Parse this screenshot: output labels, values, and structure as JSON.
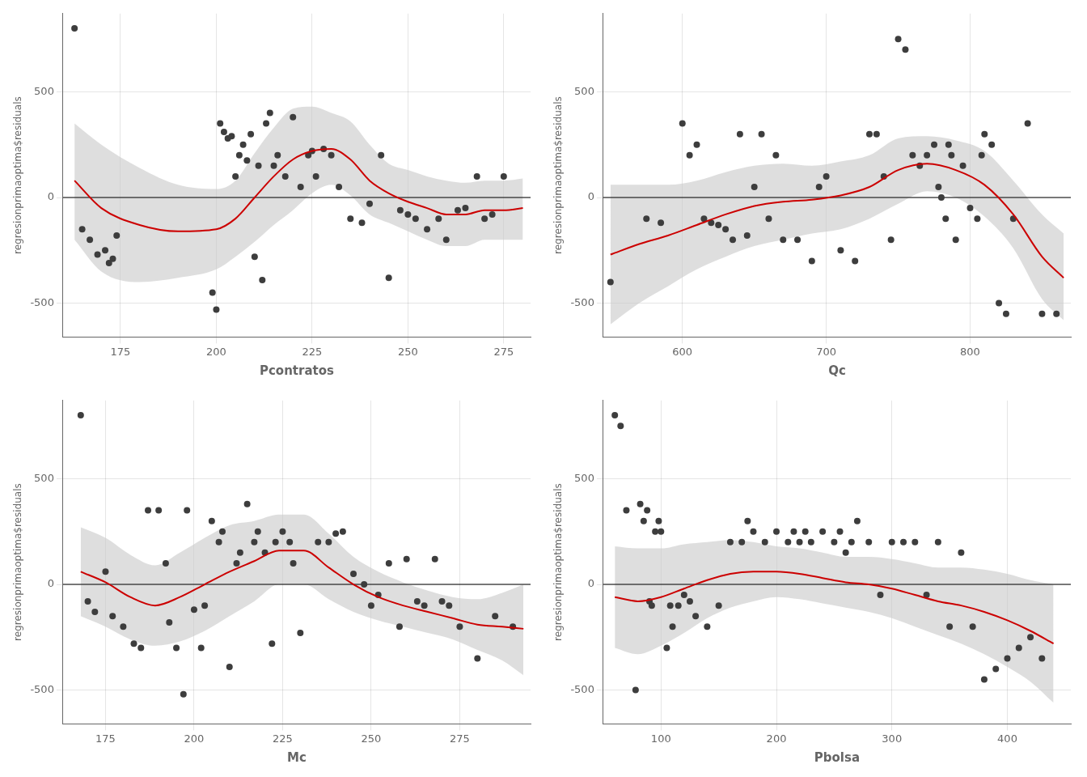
{
  "chart_data": [
    {
      "type": "scatter",
      "x_label": "Pcontratos",
      "y_label": "regresionprimaoptima$residuals",
      "xlim": [
        160,
        282
      ],
      "ylim": [
        -660,
        870
      ],
      "xticks": [
        175,
        200,
        225,
        250,
        275
      ],
      "yticks": [
        -500,
        0,
        500
      ],
      "grid": true,
      "series": [
        {
          "type": "band",
          "color": "#c8c8c8",
          "x": [
            163,
            170,
            180,
            190,
            200,
            205,
            210,
            215,
            220,
            225,
            230,
            235,
            240,
            245,
            250,
            255,
            260,
            265,
            270,
            275,
            280
          ],
          "lower": [
            -200,
            -350,
            -400,
            -380,
            -340,
            -280,
            -210,
            -130,
            -60,
            20,
            60,
            10,
            -80,
            -120,
            -160,
            -200,
            -230,
            -230,
            -200,
            -200,
            -200
          ],
          "upper": [
            350,
            250,
            140,
            60,
            40,
            80,
            210,
            330,
            420,
            430,
            400,
            360,
            250,
            160,
            130,
            100,
            80,
            70,
            80,
            80,
            90
          ]
        },
        {
          "type": "hline",
          "color": "#000000",
          "value": 0
        },
        {
          "type": "scatter",
          "color": "#3d3d3d",
          "x": [
            163,
            165,
            167,
            169,
            171,
            172,
            173,
            174,
            199,
            200,
            201,
            202,
            203,
            204,
            205,
            206,
            207,
            208,
            209,
            210,
            211,
            212,
            213,
            214,
            215,
            216,
            218,
            220,
            222,
            224,
            225,
            226,
            228,
            230,
            232,
            235,
            238,
            240,
            243,
            245,
            248,
            250,
            252,
            255,
            258,
            260,
            263,
            265,
            268,
            270,
            272,
            275
          ],
          "values": [
            800,
            -150,
            -200,
            -270,
            -250,
            -310,
            -290,
            -180,
            -450,
            -530,
            350,
            310,
            280,
            290,
            100,
            200,
            250,
            175,
            300,
            -280,
            150,
            -390,
            350,
            400,
            150,
            200,
            100,
            380,
            50,
            200,
            220,
            100,
            230,
            200,
            50,
            -100,
            -120,
            -30,
            200,
            -380,
            -60,
            -80,
            -100,
            -150,
            -100,
            -200,
            -60,
            -50,
            100,
            -100,
            -80,
            100
          ]
        },
        {
          "type": "line",
          "color": "#cc0000",
          "x": [
            163,
            170,
            180,
            190,
            200,
            205,
            210,
            215,
            220,
            225,
            230,
            235,
            240,
            245,
            250,
            255,
            260,
            265,
            270,
            275,
            280
          ],
          "values": [
            80,
            -50,
            -130,
            -160,
            -150,
            -100,
            0,
            100,
            180,
            220,
            230,
            180,
            80,
            20,
            -20,
            -50,
            -80,
            -80,
            -60,
            -60,
            -50
          ]
        }
      ]
    },
    {
      "type": "scatter",
      "x_label": "Qc",
      "y_label": "regresionprimaoptima$residuals",
      "xlim": [
        545,
        870
      ],
      "ylim": [
        -660,
        870
      ],
      "xticks": [
        600,
        700,
        800
      ],
      "yticks": [
        -500,
        0,
        500
      ],
      "grid": true,
      "series": [
        {
          "type": "band",
          "color": "#c8c8c8",
          "x": [
            550,
            570,
            590,
            610,
            630,
            650,
            670,
            690,
            710,
            730,
            750,
            770,
            790,
            810,
            830,
            850,
            865
          ],
          "lower": [
            -600,
            -500,
            -420,
            -340,
            -280,
            -230,
            -200,
            -170,
            -150,
            -100,
            -30,
            30,
            0,
            -90,
            -240,
            -480,
            -580
          ],
          "upper": [
            60,
            60,
            60,
            80,
            120,
            150,
            160,
            150,
            170,
            200,
            280,
            290,
            270,
            220,
            80,
            -80,
            -170
          ]
        },
        {
          "type": "hline",
          "color": "#000000",
          "value": 0
        },
        {
          "type": "scatter",
          "color": "#3d3d3d",
          "x": [
            550,
            575,
            585,
            600,
            605,
            610,
            615,
            620,
            625,
            630,
            635,
            640,
            645,
            650,
            655,
            660,
            665,
            670,
            680,
            690,
            695,
            700,
            710,
            720,
            730,
            735,
            740,
            745,
            750,
            755,
            760,
            765,
            770,
            775,
            778,
            780,
            783,
            785,
            787,
            790,
            795,
            800,
            805,
            808,
            810,
            815,
            820,
            825,
            830,
            840,
            850,
            860
          ],
          "values": [
            -400,
            -100,
            -120,
            350,
            200,
            250,
            -100,
            -120,
            -130,
            -150,
            -200,
            300,
            -180,
            50,
            300,
            -100,
            200,
            -200,
            -200,
            -300,
            50,
            100,
            -250,
            -300,
            300,
            300,
            100,
            -200,
            750,
            700,
            200,
            150,
            200,
            250,
            50,
            0,
            -100,
            250,
            200,
            -200,
            150,
            -50,
            -100,
            200,
            300,
            250,
            -500,
            -550,
            -100,
            350,
            -550,
            -550
          ]
        },
        {
          "type": "line",
          "color": "#cc0000",
          "x": [
            550,
            570,
            590,
            610,
            630,
            650,
            670,
            690,
            710,
            730,
            750,
            770,
            790,
            810,
            830,
            850,
            865
          ],
          "values": [
            -270,
            -220,
            -180,
            -130,
            -80,
            -40,
            -20,
            -10,
            10,
            50,
            130,
            160,
            130,
            60,
            -80,
            -280,
            -380
          ]
        }
      ]
    },
    {
      "type": "scatter",
      "x_label": "Mc",
      "y_label": "regresionprimaoptima$residuals",
      "xlim": [
        163,
        295
      ],
      "ylim": [
        -660,
        870
      ],
      "xticks": [
        175,
        200,
        225,
        250,
        275
      ],
      "yticks": [
        -500,
        0,
        500
      ],
      "grid": true,
      "series": [
        {
          "type": "band",
          "color": "#c8c8c8",
          "x": [
            168,
            175,
            182,
            189,
            196,
            203,
            210,
            217,
            224,
            231,
            238,
            245,
            252,
            259,
            266,
            273,
            280,
            287,
            293
          ],
          "lower": [
            -150,
            -200,
            -260,
            -290,
            -270,
            -220,
            -150,
            -80,
            0,
            0,
            -70,
            -130,
            -170,
            -200,
            -230,
            -260,
            -310,
            -360,
            -430
          ],
          "upper": [
            270,
            220,
            140,
            90,
            150,
            220,
            280,
            300,
            330,
            330,
            240,
            130,
            60,
            10,
            -30,
            -60,
            -70,
            -40,
            0
          ]
        },
        {
          "type": "hline",
          "color": "#000000",
          "value": 0
        },
        {
          "type": "scatter",
          "color": "#3d3d3d",
          "x": [
            168,
            170,
            172,
            175,
            177,
            180,
            183,
            185,
            187,
            190,
            192,
            193,
            195,
            197,
            198,
            200,
            202,
            203,
            205,
            207,
            208,
            210,
            212,
            213,
            215,
            217,
            218,
            220,
            222,
            223,
            225,
            227,
            228,
            230,
            235,
            238,
            240,
            242,
            245,
            248,
            250,
            252,
            255,
            258,
            260,
            263,
            265,
            268,
            270,
            272,
            275,
            280,
            285,
            290
          ],
          "values": [
            800,
            -80,
            -130,
            60,
            -150,
            -200,
            -280,
            -300,
            350,
            350,
            100,
            -180,
            -300,
            -520,
            350,
            -120,
            -300,
            -100,
            300,
            200,
            250,
            -390,
            100,
            150,
            380,
            200,
            250,
            150,
            -280,
            200,
            250,
            200,
            100,
            -230,
            200,
            200,
            240,
            250,
            50,
            0,
            -100,
            -50,
            100,
            -200,
            120,
            -80,
            -100,
            120,
            -80,
            -100,
            -200,
            -350,
            -150,
            -200
          ]
        },
        {
          "type": "line",
          "color": "#cc0000",
          "x": [
            168,
            175,
            182,
            189,
            196,
            203,
            210,
            217,
            224,
            231,
            238,
            245,
            252,
            259,
            266,
            273,
            280,
            287,
            293
          ],
          "values": [
            60,
            10,
            -60,
            -100,
            -60,
            0,
            60,
            110,
            160,
            160,
            80,
            0,
            -60,
            -100,
            -130,
            -160,
            -190,
            -200,
            -210
          ]
        }
      ]
    },
    {
      "type": "scatter",
      "x_label": "Pbolsa",
      "y_label": "regresionprimaoptima$residuals",
      "xlim": [
        50,
        455
      ],
      "ylim": [
        -660,
        870
      ],
      "xticks": [
        100,
        200,
        300,
        400
      ],
      "yticks": [
        -500,
        0,
        500
      ],
      "grid": true,
      "series": [
        {
          "type": "band",
          "color": "#c8c8c8",
          "x": [
            60,
            80,
            100,
            120,
            140,
            160,
            180,
            200,
            220,
            240,
            260,
            280,
            300,
            320,
            340,
            360,
            380,
            400,
            420,
            440
          ],
          "lower": [
            -300,
            -330,
            -290,
            -230,
            -160,
            -110,
            -80,
            -60,
            -70,
            -90,
            -110,
            -130,
            -160,
            -200,
            -240,
            -280,
            -330,
            -390,
            -460,
            -560
          ],
          "upper": [
            180,
            170,
            170,
            190,
            200,
            210,
            200,
            180,
            170,
            150,
            130,
            130,
            120,
            100,
            80,
            80,
            70,
            50,
            20,
            0
          ]
        },
        {
          "type": "hline",
          "color": "#000000",
          "value": 0
        },
        {
          "type": "scatter",
          "color": "#3d3d3d",
          "x": [
            60,
            65,
            70,
            78,
            82,
            85,
            88,
            90,
            92,
            95,
            98,
            100,
            105,
            108,
            110,
            115,
            120,
            125,
            130,
            140,
            150,
            160,
            170,
            175,
            180,
            190,
            200,
            210,
            215,
            220,
            225,
            230,
            240,
            250,
            255,
            260,
            265,
            270,
            280,
            290,
            300,
            310,
            320,
            330,
            340,
            350,
            360,
            370,
            380,
            390,
            400,
            410,
            420,
            430
          ],
          "values": [
            800,
            750,
            350,
            -500,
            380,
            300,
            350,
            -80,
            -100,
            250,
            300,
            250,
            -300,
            -100,
            -200,
            -100,
            -50,
            -80,
            -150,
            -200,
            -100,
            200,
            200,
            300,
            250,
            200,
            250,
            200,
            250,
            200,
            250,
            200,
            250,
            200,
            250,
            150,
            200,
            300,
            200,
            -50,
            200,
            200,
            200,
            -50,
            200,
            -200,
            150,
            -200,
            -450,
            -400,
            -350,
            -300,
            -250,
            -350
          ]
        },
        {
          "type": "line",
          "color": "#cc0000",
          "x": [
            60,
            80,
            100,
            120,
            140,
            160,
            180,
            200,
            220,
            240,
            260,
            280,
            300,
            320,
            340,
            360,
            380,
            400,
            420,
            440
          ],
          "values": [
            -60,
            -80,
            -60,
            -20,
            20,
            50,
            60,
            60,
            50,
            30,
            10,
            0,
            -20,
            -50,
            -80,
            -100,
            -130,
            -170,
            -220,
            -280
          ]
        }
      ]
    }
  ]
}
